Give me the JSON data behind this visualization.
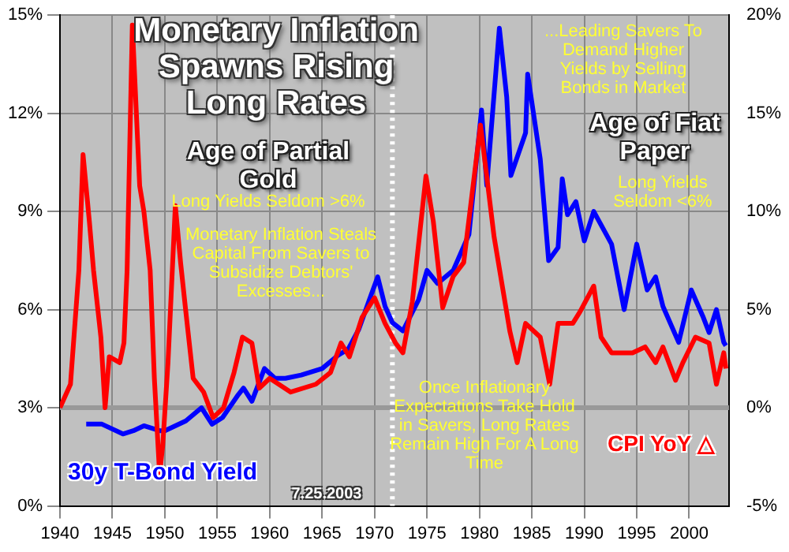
{
  "chart_data": {
    "type": "line",
    "title": "Monetary Inflation Spawns Rising Long Rates",
    "annotations": [
      "Age of Partial Gold",
      "Long Yields Seldom >6%",
      "Monetary Inflation Steals Capital From Savers to Subsidize Debtors' Excesses...",
      "...Leading Savers To Demand Higher Yields by Selling Bonds in Market",
      "Age of Fiat Paper",
      "Long Yields Seldom <6%",
      "Once Inflationary Expectations Take Hold in Savers, Long Rates Remain High For A Long Time",
      "7.25.2003"
    ],
    "xlim": [
      1940,
      2003.8
    ],
    "xticks": [
      1940,
      1945,
      1950,
      1955,
      1960,
      1965,
      1970,
      1975,
      1980,
      1985,
      1990,
      1995,
      2000
    ],
    "ylim": [
      0,
      15
    ],
    "yticks": [
      {
        "value": 0,
        "label": "0%"
      },
      {
        "value": 3,
        "label": "3%"
      },
      {
        "value": 6,
        "label": "6%"
      },
      {
        "value": 9,
        "label": "9%"
      },
      {
        "value": 12,
        "label": "12%"
      },
      {
        "value": 15,
        "label": "15%"
      }
    ],
    "y2lim": [
      -5,
      20
    ],
    "y2ticks": [
      {
        "value": -5,
        "label": "-5%"
      },
      {
        "value": 0,
        "label": "0%"
      },
      {
        "value": 5,
        "label": "5%"
      },
      {
        "value": 10,
        "label": "10%"
      },
      {
        "value": 15,
        "label": "15%"
      },
      {
        "value": 20,
        "label": "20%"
      }
    ],
    "grid": true,
    "legend": false,
    "marker": "none",
    "line_style": "solid",
    "ref_lines": [
      {
        "axis": "y2",
        "value": 0,
        "label": null,
        "color": "#999999",
        "line_style": "solid"
      },
      {
        "axis": "x",
        "value": 1971.7,
        "label": null,
        "color": "#ffffff",
        "line_style": "dotted"
      }
    ],
    "series": [
      {
        "name": "30y T-Bond Yield",
        "color": "#0000ff",
        "axis": "y",
        "x": [
          1942.5,
          1944,
          1946,
          1947,
          1948,
          1949.5,
          1950,
          1952,
          1953.5,
          1954.5,
          1955.5,
          1957,
          1957.5,
          1958.3,
          1959.5,
          1960.5,
          1961.5,
          1963,
          1965,
          1966.5,
          1967.5,
          1968.5,
          1969.5,
          1970.3,
          1971,
          1971.7,
          1972.7,
          1974.2,
          1975,
          1976,
          1977.5,
          1979,
          1980.2,
          1980.7,
          1981.9,
          1982.6,
          1983,
          1984.4,
          1984.6,
          1985.8,
          1986.6,
          1987.5,
          1987.9,
          1988.4,
          1989.2,
          1990,
          1990.9,
          1992.6,
          1993.8,
          1995,
          1996,
          1996.8,
          1997.5,
          1999,
          2000.2,
          2001.3,
          2001.9,
          2002.6,
          2003.3,
          2003.5
        ],
        "values": [
          2.5,
          2.5,
          2.2,
          2.3,
          2.45,
          2.3,
          2.3,
          2.6,
          3.0,
          2.5,
          2.7,
          3.4,
          3.6,
          3.2,
          4.2,
          3.9,
          3.9,
          4.0,
          4.2,
          4.6,
          4.8,
          5.4,
          6.3,
          7.0,
          6.1,
          5.6,
          5.35,
          6.3,
          7.2,
          6.8,
          7.2,
          8.3,
          12.1,
          9.8,
          14.6,
          12.5,
          10.1,
          11.4,
          13.2,
          10.6,
          7.5,
          7.9,
          10.0,
          8.9,
          9.3,
          8.1,
          9.0,
          8.0,
          6.0,
          8.0,
          6.6,
          7.0,
          6.1,
          5.0,
          6.6,
          5.8,
          5.3,
          6.0,
          5.0,
          4.9
        ]
      },
      {
        "name": "CPI YoY △",
        "color": "#ff0000",
        "axis": "y2",
        "x": [
          1940,
          1941,
          1941.8,
          1942.2,
          1942.8,
          1943.2,
          1943.9,
          1944.3,
          1944.7,
          1945.7,
          1946.1,
          1946.4,
          1946.9,
          1947.6,
          1948,
          1948.6,
          1949,
          1949.5,
          1949.8,
          1950.3,
          1951,
          1951.5,
          1952,
          1952.7,
          1953.7,
          1954.6,
          1955.6,
          1956.6,
          1957.4,
          1958.3,
          1959,
          1960,
          1962,
          1964.4,
          1965.8,
          1966.8,
          1967.6,
          1968.8,
          1970,
          1971,
          1972,
          1972.7,
          1973.6,
          1974.9,
          1975.6,
          1976.5,
          1977.5,
          1978.5,
          1980.1,
          1981.4,
          1982.9,
          1983.6,
          1984.4,
          1985.8,
          1986.7,
          1987.5,
          1988.9,
          1989.6,
          1990.9,
          1991.6,
          1992.6,
          1994.6,
          1995.8,
          1996.8,
          1997.5,
          1998.7,
          1999.4,
          2000.6,
          2001.9,
          2002.6,
          2003.3,
          2003.5
        ],
        "values": [
          0,
          1.2,
          7.0,
          12.9,
          9.5,
          7.0,
          3.6,
          0,
          2.6,
          2.3,
          3.3,
          7.0,
          19.5,
          11.3,
          10,
          7.0,
          1.5,
          -3.4,
          -1.9,
          2.3,
          10.3,
          7.4,
          4.9,
          1.5,
          0.8,
          -0.5,
          0,
          1.8,
          3.6,
          3.3,
          1.0,
          1.5,
          0.8,
          1.2,
          1.8,
          3.3,
          2.6,
          4.6,
          5.6,
          4.3,
          3.3,
          2.8,
          5.4,
          11.8,
          9.5,
          5.1,
          6.7,
          7.4,
          14.4,
          8.7,
          3.9,
          2.3,
          4.3,
          3.6,
          1.2,
          4.3,
          4.3,
          4.9,
          6.2,
          3.6,
          2.8,
          2.8,
          3.1,
          2.3,
          3.1,
          1.4,
          2.3,
          3.6,
          3.3,
          1.2,
          2.8,
          2.0
        ]
      }
    ]
  }
}
